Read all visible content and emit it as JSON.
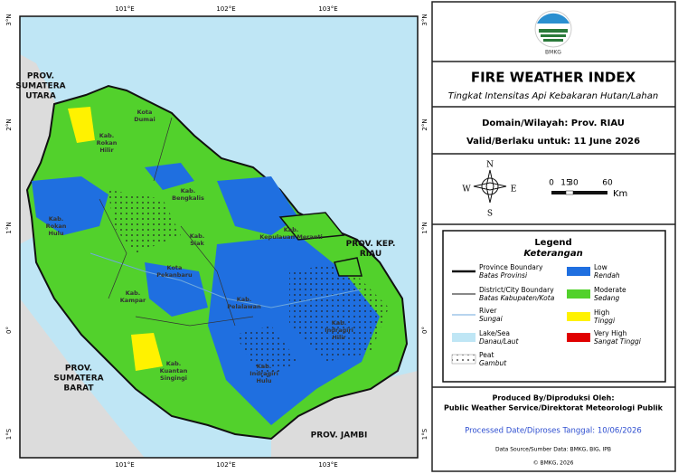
{
  "map": {
    "lon_labels": [
      "101°E",
      "102°E",
      "103°E"
    ],
    "lat_labels": [
      "3°N",
      "2°N",
      "1°N",
      "0°",
      "1°S"
    ],
    "regions": [
      [
        "PROV.",
        "SUMATERA",
        "UTARA"
      ],
      [
        "Kab.",
        "Rokan",
        "Hilir"
      ],
      [
        "Kota",
        "Dumai"
      ],
      [
        "Kab.",
        "Bengkalis"
      ],
      [
        "Kab.",
        "Rokan",
        "Hulu"
      ],
      [
        "Kab.",
        "Siak"
      ],
      [
        "Kota",
        "Pekanbaru"
      ],
      [
        "Kab.",
        "Kampar"
      ],
      [
        "Kab.",
        "Pelalawan"
      ],
      [
        "Kab.",
        "Kepulauan Meranti"
      ],
      [
        "PROV. KEP.",
        "RIAU"
      ],
      [
        "Kab.",
        "Indragiri",
        "Hilir"
      ],
      [
        "Kab.",
        "Kuantan",
        "Singingi"
      ],
      [
        "Kab.",
        "Indragiri",
        "Hulu"
      ],
      [
        "PROV.",
        "SUMATERA",
        "BARAT"
      ],
      [
        "PROV. JAMBI"
      ]
    ]
  },
  "panel": {
    "logo": "BMKG",
    "title": "FIRE WEATHER INDEX",
    "subtitle": "Tingkat Intensitas Api Kebakaran Hutan/Lahan",
    "domain": "Domain/Wilayah: Prov. RIAU",
    "valid": "Valid/Berlaku untuk: 11 June 2026",
    "compass": {
      "n": "N",
      "e": "E",
      "s": "S",
      "w": "W"
    },
    "scale": {
      "ticks": [
        "0",
        "15",
        "30",
        "60"
      ],
      "unit": "Km"
    },
    "legend": {
      "title": "Legend",
      "subtitle": "Keterangan",
      "features": [
        {
          "label": "Province Boundary",
          "sublabel": "Batas Provinsi"
        },
        {
          "label": "District/City Boundary",
          "sublabel": "Batas Kabupaten/Kota"
        },
        {
          "label": "River",
          "sublabel": "Sungai"
        },
        {
          "label": "Lake/Sea",
          "sublabel": "Danau/Laut"
        },
        {
          "label": "Peat",
          "sublabel": "Gambut"
        }
      ],
      "classes": [
        {
          "label": "Low",
          "sublabel": "Rendah",
          "color": "#1f6fe0"
        },
        {
          "label": "Moderate",
          "sublabel": "Sedang",
          "color": "#52d12c"
        },
        {
          "label": "High",
          "sublabel": "Tinggi",
          "color": "#fff200"
        },
        {
          "label": "Very High",
          "sublabel": "Sangat Tinggi",
          "color": "#e00000"
        }
      ]
    },
    "produced_by": "Produced By/Diproduksi Oleh:",
    "producer": "Public Weather Service/Direktorat Meteorologi Publik",
    "processed": "Processed Date/Diproses Tanggal: 10/06/2026",
    "source": "Data Source/Sumber Data: BMKG, BIG, IPB",
    "copyright": "© BMKG, 2026"
  }
}
